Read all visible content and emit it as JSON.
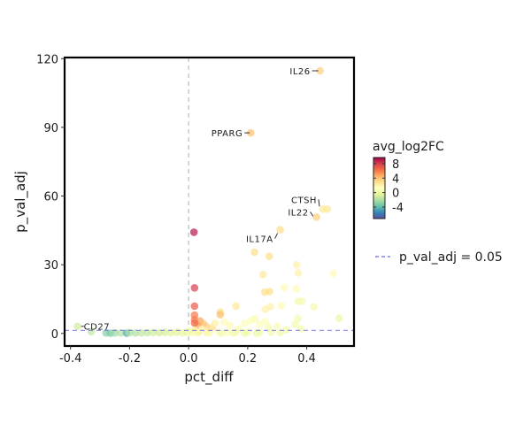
{
  "chart_data": {
    "type": "scatter",
    "title": "",
    "xlabel": "pct_diff",
    "ylabel": "p_val_adj",
    "xlim": [
      -0.42,
      0.56
    ],
    "ylim": [
      -5.5,
      120.5
    ],
    "xticks": [
      -0.4,
      -0.2,
      0.0,
      0.2,
      0.4
    ],
    "xtick_labels": [
      "-0.4",
      "-0.2",
      "0.0",
      "0.2",
      "0.4"
    ],
    "yticks": [
      0,
      30,
      60,
      90,
      120
    ],
    "ytick_labels": [
      "0",
      "30",
      "60",
      "90",
      "120"
    ],
    "vline_x": 0,
    "hline_y": 1.3,
    "color_legend": {
      "title": "avg_log2FC",
      "range": [
        -7.2,
        9.7
      ],
      "ticks": [
        8,
        4,
        0,
        -4
      ],
      "tick_labels": [
        "8",
        "4",
        "0",
        "-4"
      ],
      "colors": [
        "#5e4fa2",
        "#3288bd",
        "#66c2a5",
        "#abdda4",
        "#e6f598",
        "#ffffbf",
        "#fee08b",
        "#fdae61",
        "#f46d43",
        "#d53e4f",
        "#9e0142"
      ]
    },
    "line_legend": {
      "label": "p_val_adj = 0.05",
      "color": "#6a6ae0",
      "placement": "right"
    },
    "labels": [
      {
        "gene": "IL26",
        "x": 0.445,
        "y": 114.7
      },
      {
        "gene": "PPARG",
        "x": 0.21,
        "y": 87.6
      },
      {
        "gene": "CTSH",
        "x": 0.455,
        "y": 54.3
      },
      {
        "gene": "IL22",
        "x": 0.433,
        "y": 50.8
      },
      {
        "gene": "IL17A",
        "x": 0.31,
        "y": 45.3
      },
      {
        "gene": "CD27",
        "x": -0.376,
        "y": 3.1
      }
    ],
    "points": [
      [
        0.445,
        114.7,
        3.5
      ],
      [
        0.21,
        87.6,
        4
      ],
      [
        0.455,
        54.3,
        2.5
      ],
      [
        0.47,
        54.3,
        2.5
      ],
      [
        0.433,
        50.8,
        3.5
      ],
      [
        0.31,
        45.3,
        3
      ],
      [
        0.018,
        44.2,
        9
      ],
      [
        0.223,
        35.5,
        3
      ],
      [
        0.273,
        33.7,
        3
      ],
      [
        0.366,
        30,
        2
      ],
      [
        0.252,
        25.7,
        2.5
      ],
      [
        0.371,
        26.4,
        2
      ],
      [
        0.49,
        26.2,
        1.5
      ],
      [
        0.02,
        19.9,
        8
      ],
      [
        0.258,
        18,
        3
      ],
      [
        0.274,
        18.3,
        3
      ],
      [
        0.324,
        20,
        1.5
      ],
      [
        0.364,
        19.5,
        1.5
      ],
      [
        0.02,
        11.9,
        7
      ],
      [
        0.16,
        11.9,
        2.5
      ],
      [
        0.259,
        10.5,
        2
      ],
      [
        0.277,
        11.7,
        2
      ],
      [
        0.314,
        12.1,
        1.5
      ],
      [
        0.37,
        14,
        0.5
      ],
      [
        0.384,
        14,
        0.5
      ],
      [
        0.424,
        11.6,
        0.5
      ],
      [
        0.51,
        6.6,
        0
      ],
      [
        0.107,
        9.3,
        3
      ],
      [
        0.107,
        8.2,
        4
      ],
      [
        0.02,
        8,
        6
      ],
      [
        0.02,
        6,
        6
      ],
      [
        0.039,
        5.4,
        5
      ],
      [
        0.05,
        4.2,
        4
      ],
      [
        0.03,
        3.5,
        5
      ],
      [
        0.02,
        4.5,
        6.5
      ],
      [
        0.06,
        3,
        3.5
      ],
      [
        0.08,
        2.5,
        3
      ],
      [
        0.09,
        4.5,
        2
      ],
      [
        0.12,
        5,
        1.5
      ],
      [
        0.14,
        3.5,
        1.5
      ],
      [
        0.17,
        2,
        1
      ],
      [
        0.19,
        4.5,
        1.5
      ],
      [
        0.21,
        5.5,
        1
      ],
      [
        0.225,
        6.5,
        0.8
      ],
      [
        0.24,
        4,
        1
      ],
      [
        0.26,
        5.2,
        1
      ],
      [
        0.27,
        2.8,
        0.8
      ],
      [
        0.3,
        3.2,
        0.8
      ],
      [
        0.33,
        1.5,
        0.5
      ],
      [
        0.36,
        4,
        0.5
      ],
      [
        0.37,
        6.5,
        0.5
      ],
      [
        0.38,
        2,
        0.5
      ],
      [
        0.035,
        0.8,
        3
      ],
      [
        0.06,
        0.5,
        2
      ],
      [
        0.1,
        0.7,
        1
      ],
      [
        0.13,
        0.4,
        1
      ],
      [
        0.16,
        0.6,
        0.5
      ],
      [
        0.2,
        0.5,
        0.5
      ],
      [
        0.24,
        0.4,
        0.5
      ],
      [
        0.28,
        0.5,
        0.3
      ],
      [
        0.31,
        0.3,
        0.3
      ],
      [
        0.01,
        0.3,
        1.5
      ],
      [
        0.02,
        1.5,
        2
      ],
      [
        0.045,
        1.8,
        1.5
      ],
      [
        -0.376,
        3.1,
        -1
      ],
      [
        -0.33,
        0.8,
        -1.5
      ],
      [
        -0.28,
        0.2,
        -3
      ],
      [
        -0.265,
        0.1,
        -3.5
      ],
      [
        -0.25,
        0.2,
        -2.5
      ],
      [
        -0.23,
        0.2,
        -2
      ],
      [
        -0.21,
        0.1,
        -4.5
      ],
      [
        -0.2,
        0.3,
        -2
      ],
      [
        -0.18,
        0.2,
        -2
      ],
      [
        -0.16,
        0.2,
        -1.5
      ],
      [
        -0.14,
        0.3,
        -1.5
      ],
      [
        -0.12,
        0.4,
        -1
      ],
      [
        -0.1,
        0.3,
        -1
      ],
      [
        -0.08,
        0.5,
        -0.8
      ],
      [
        -0.06,
        0.3,
        -0.5
      ],
      [
        -0.04,
        0.5,
        -0.5
      ],
      [
        -0.02,
        0.2,
        -0.3
      ],
      [
        -0.005,
        0.6,
        0
      ],
      [
        0.005,
        1,
        0.5
      ],
      [
        0.03,
        0.1,
        0.5
      ],
      [
        0.07,
        0.2,
        0.5
      ],
      [
        0.11,
        0.1,
        0.3
      ],
      [
        0.15,
        0.2,
        0.3
      ],
      [
        0.19,
        0.1,
        0.2
      ],
      [
        0.23,
        0.1,
        0.2
      ]
    ]
  }
}
